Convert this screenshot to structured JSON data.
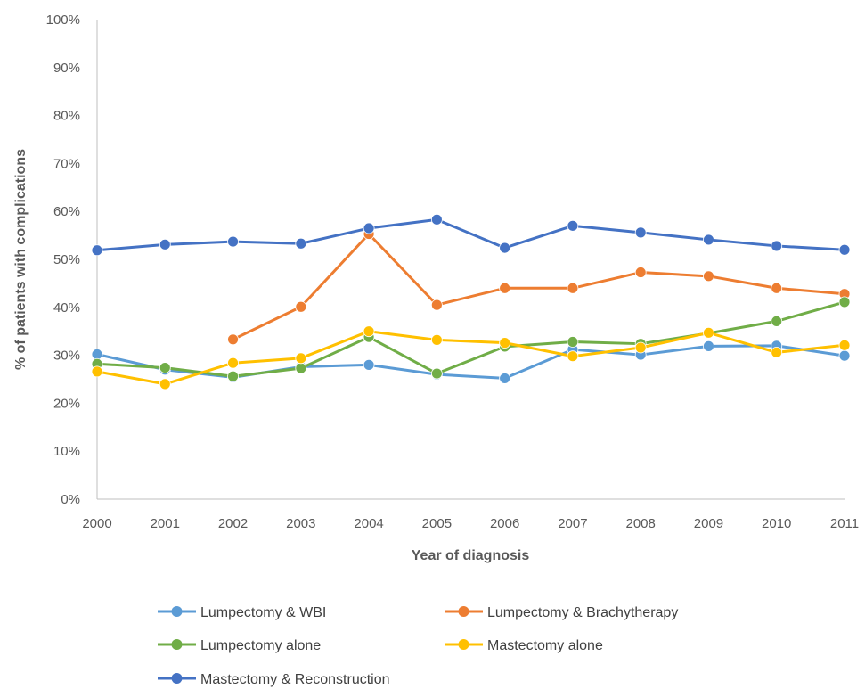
{
  "chart_data": {
    "type": "line",
    "title": "",
    "xlabel": "Year of diagnosis",
    "ylabel": "% of patients with complications",
    "x": [
      2000,
      2001,
      2002,
      2003,
      2004,
      2005,
      2006,
      2007,
      2008,
      2009,
      2010,
      2011
    ],
    "x_tick_labels": [
      "2000",
      "2001",
      "2002",
      "2003",
      "2004",
      "2005",
      "2006",
      "2007",
      "2008",
      "2009",
      "2010",
      "2011"
    ],
    "ylim": [
      0,
      100
    ],
    "y_tick_labels": [
      "0%",
      "10%",
      "20%",
      "30%",
      "40%",
      "50%",
      "60%",
      "70%",
      "80%",
      "90%",
      "100%"
    ],
    "y_ticks": [
      0,
      10,
      20,
      30,
      40,
      50,
      60,
      70,
      80,
      90,
      100
    ],
    "grid": false,
    "legend_position": "bottom",
    "series": [
      {
        "name": "Lumpectomy & WBI",
        "color": "#5B9BD5",
        "values": [
          30.2,
          27.0,
          25.4,
          27.6,
          28.0,
          26.0,
          25.2,
          31.2,
          30.1,
          31.9,
          32.0,
          29.9
        ]
      },
      {
        "name": "Lumpectomy & Brachytherapy",
        "color": "#ED7D31",
        "values": [
          null,
          null,
          33.3,
          40.1,
          55.3,
          40.5,
          44.0,
          44.0,
          47.3,
          46.5,
          44.0,
          42.8
        ]
      },
      {
        "name": "Lumpectomy alone",
        "color": "#70AD47",
        "values": [
          28.2,
          27.4,
          25.6,
          27.3,
          33.8,
          26.2,
          31.8,
          32.8,
          32.4,
          34.6,
          37.1,
          41.1
        ]
      },
      {
        "name": "Mastectomy alone",
        "color": "#FFC000",
        "values": [
          26.6,
          24.0,
          28.4,
          29.4,
          35.0,
          33.2,
          32.6,
          29.8,
          31.6,
          34.7,
          30.6,
          32.1
        ]
      },
      {
        "name": "Mastectomy & Reconstruction",
        "color": "#4472C4",
        "values": [
          51.9,
          53.1,
          53.7,
          53.3,
          56.5,
          58.3,
          52.4,
          57.0,
          55.6,
          54.1,
          52.8,
          52.0
        ]
      }
    ]
  }
}
